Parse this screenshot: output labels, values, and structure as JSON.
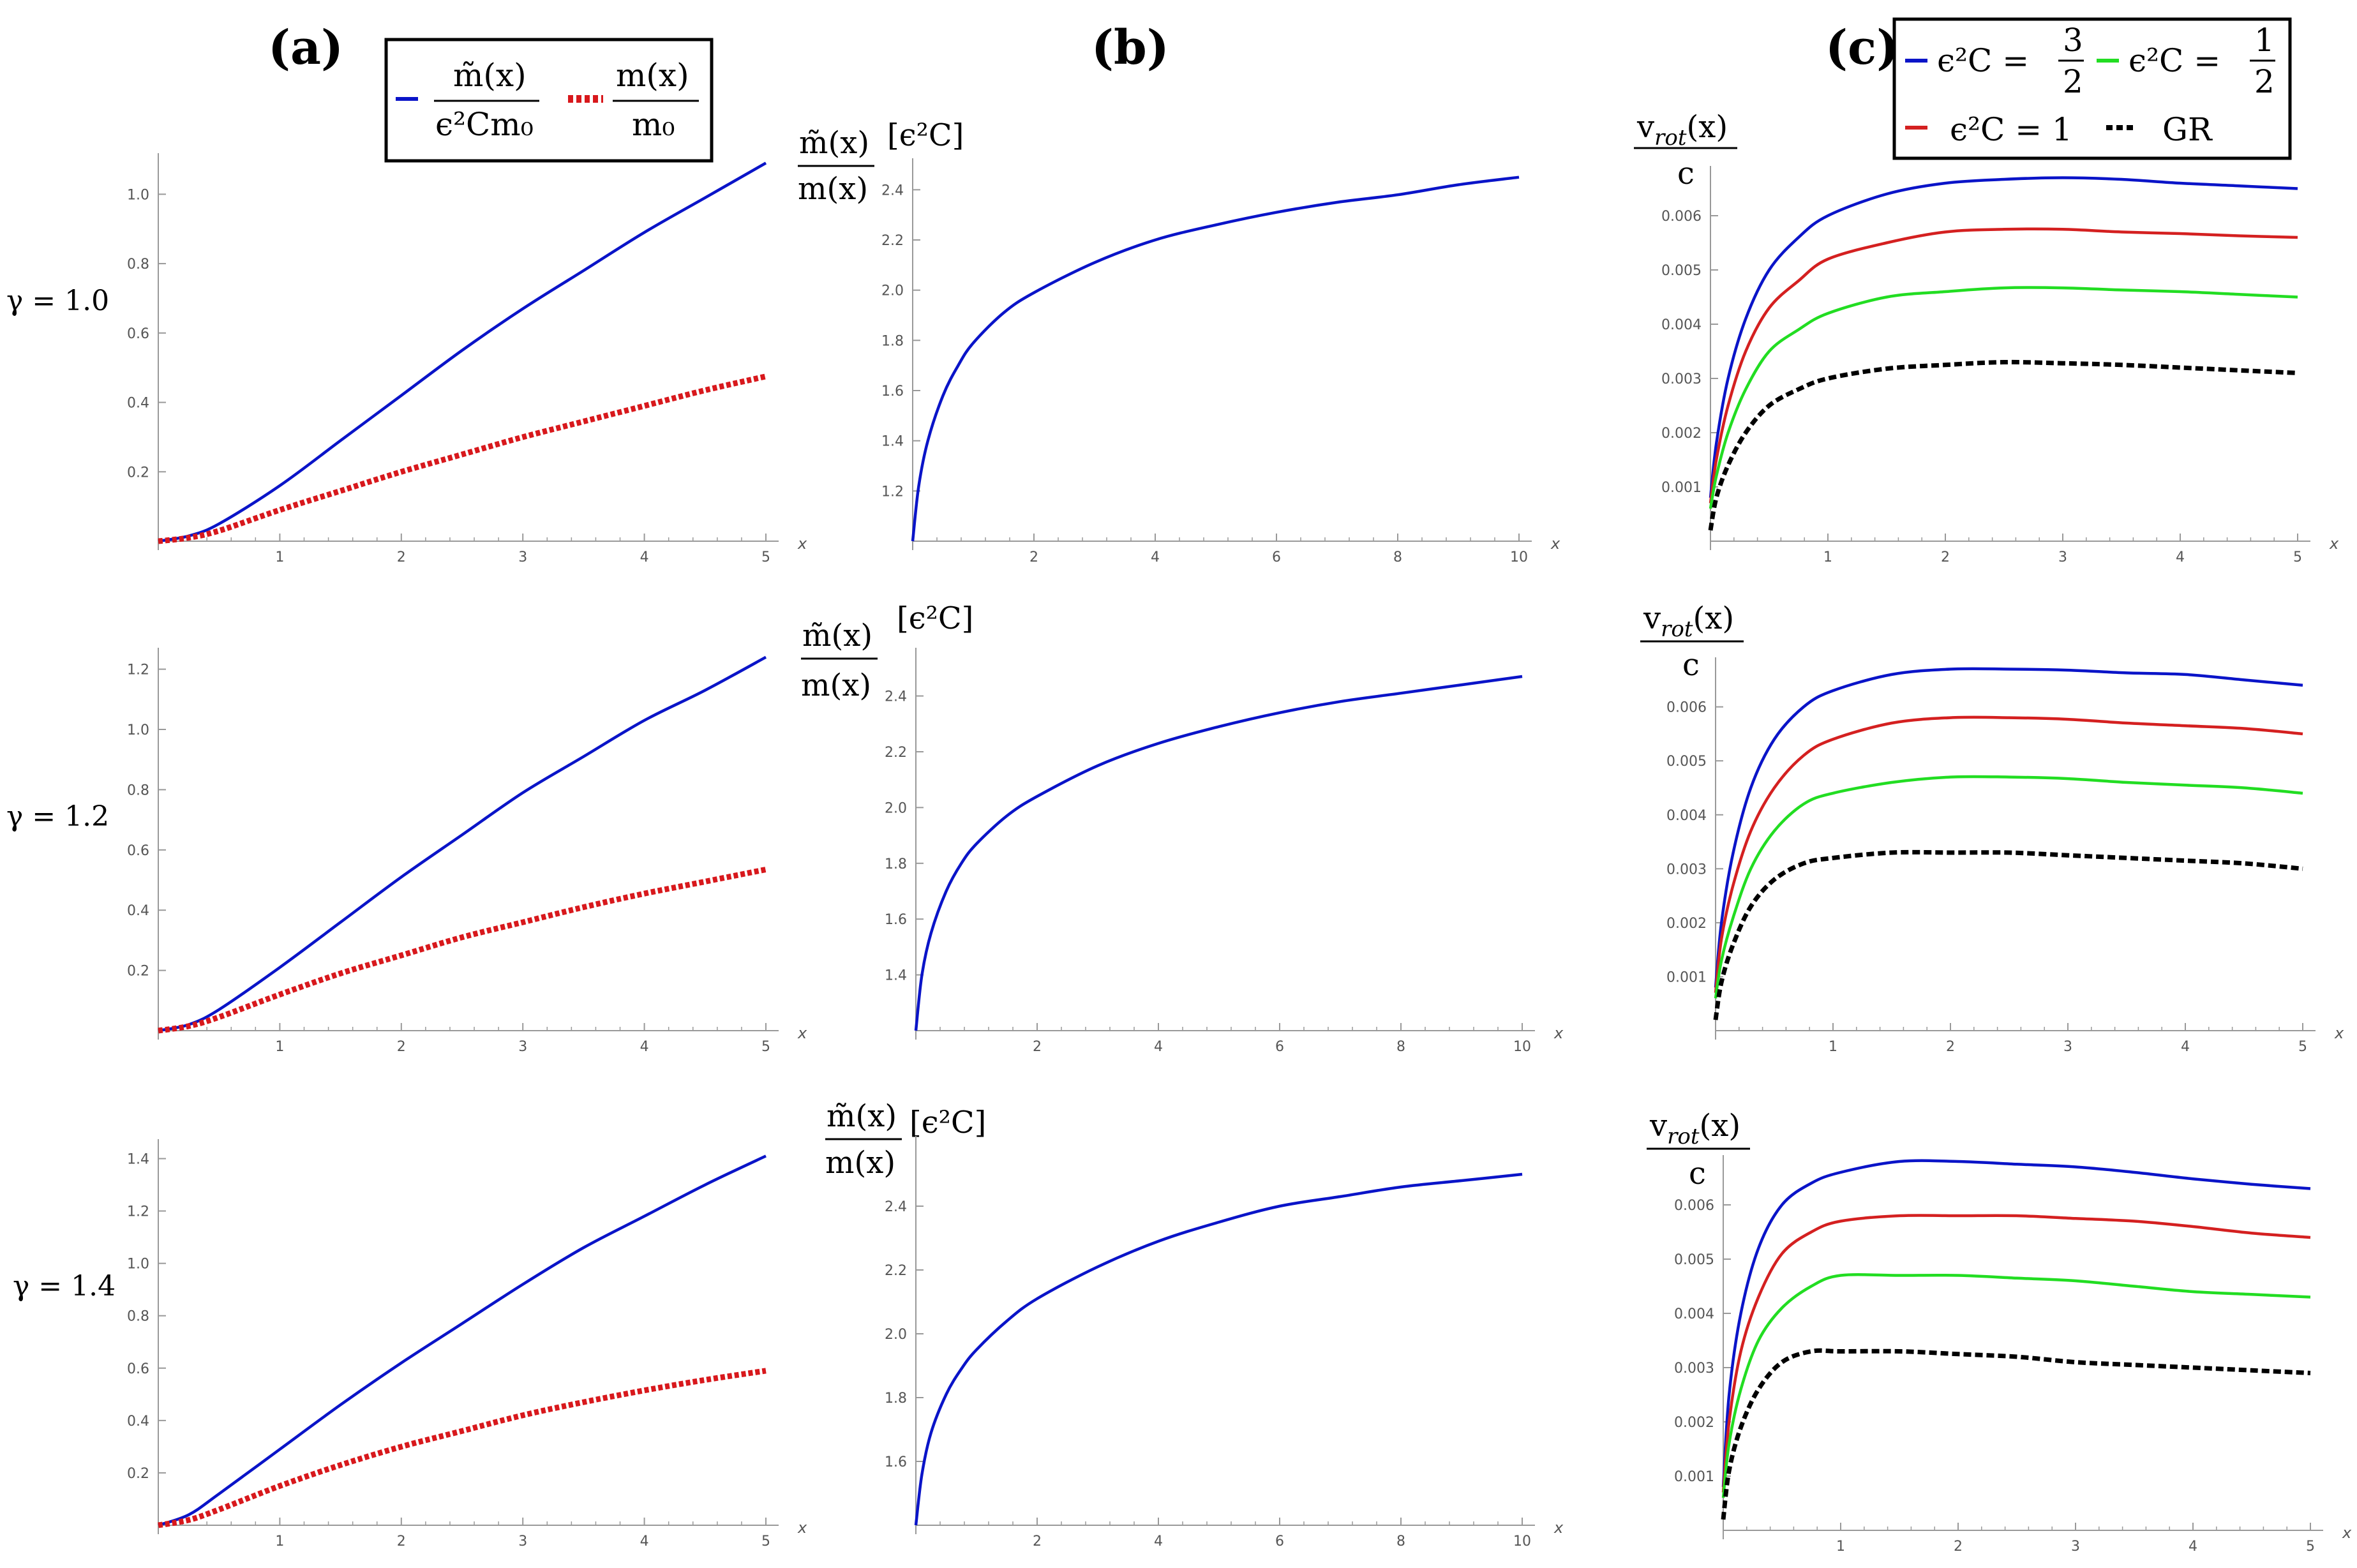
{
  "figure": {
    "panel_labels": [
      "(a)",
      "(b)",
      "(c)"
    ],
    "row_labels": [
      "γ = 1.0",
      "γ = 1.2",
      "γ = 1.4"
    ]
  },
  "colors": {
    "blue": "#0a14c8",
    "red_dotted": "#d8181c",
    "red": "#d42020",
    "green": "#22dd22",
    "black": "#000000",
    "axis": "#999999"
  },
  "legend_a": {
    "entries": [
      {
        "label_num": "m̃(x)",
        "label_den": "ϵ²Cm₀",
        "color": "#0a14c8",
        "style": "solid"
      },
      {
        "label_num": "m(x)",
        "label_den": "m₀",
        "color": "#d8181c",
        "style": "dotted"
      }
    ]
  },
  "legend_c": {
    "entries": [
      {
        "label": "ϵ²C =",
        "frac_num": "3",
        "frac_den": "2",
        "color": "#0a14c8",
        "style": "solid"
      },
      {
        "label": "ϵ²C =",
        "frac_num": "1",
        "frac_den": "2",
        "color": "#22dd22",
        "style": "solid"
      },
      {
        "label": "ϵ²C = 1",
        "color": "#d42020",
        "style": "solid"
      },
      {
        "label": "GR",
        "color": "#000000",
        "style": "dashed"
      }
    ]
  },
  "ylabel_b": {
    "num": "m̃(x)",
    "den": "m(x)",
    "unit": "[ϵ²C]"
  },
  "ylabel_c": {
    "num": "v_rot(x)",
    "num_main": "v",
    "num_sub": "rot",
    "num_arg": "(x)",
    "den": "c"
  },
  "chart_data": [
    {
      "id": "a1",
      "type": "line",
      "xlabel": "x",
      "xlim": [
        0,
        5
      ],
      "ylim": [
        0,
        1.1
      ],
      "xticks": [
        1,
        2,
        3,
        4,
        5
      ],
      "yticks": [
        0.2,
        0.4,
        0.6,
        0.8,
        1.0
      ],
      "x": [
        0,
        0.25,
        0.5,
        1,
        1.5,
        2,
        2.5,
        3,
        3.5,
        4,
        4.5,
        5
      ],
      "series": [
        {
          "name": "m̃(x)/(ϵ²Cm₀)",
          "color": "#0a14c8",
          "style": "solid",
          "values": [
            0,
            0.015,
            0.05,
            0.16,
            0.29,
            0.42,
            0.55,
            0.67,
            0.78,
            0.89,
            0.99,
            1.09
          ]
        },
        {
          "name": "m(x)/m₀",
          "color": "#d8181c",
          "style": "dotted",
          "values": [
            0,
            0.01,
            0.03,
            0.09,
            0.145,
            0.2,
            0.25,
            0.3,
            0.345,
            0.39,
            0.435,
            0.475
          ]
        }
      ]
    },
    {
      "id": "a2",
      "type": "line",
      "xlabel": "x",
      "xlim": [
        0,
        5
      ],
      "ylim": [
        0,
        1.25
      ],
      "xticks": [
        1,
        2,
        3,
        4,
        5
      ],
      "yticks": [
        0.2,
        0.4,
        0.6,
        0.8,
        1.0,
        1.2
      ],
      "x": [
        0,
        0.25,
        0.5,
        1,
        1.5,
        2,
        2.5,
        3,
        3.5,
        4,
        4.5,
        5
      ],
      "series": [
        {
          "name": "m̃(x)/(ϵ²Cm₀)",
          "color": "#0a14c8",
          "style": "solid",
          "values": [
            0,
            0.02,
            0.07,
            0.21,
            0.36,
            0.51,
            0.65,
            0.79,
            0.91,
            1.03,
            1.13,
            1.24
          ]
        },
        {
          "name": "m(x)/m₀",
          "color": "#d8181c",
          "style": "dotted",
          "values": [
            0,
            0.015,
            0.045,
            0.12,
            0.19,
            0.25,
            0.31,
            0.36,
            0.41,
            0.455,
            0.495,
            0.535
          ]
        }
      ]
    },
    {
      "id": "a3",
      "type": "line",
      "xlabel": "x",
      "xlim": [
        0,
        5
      ],
      "ylim": [
        0,
        1.45
      ],
      "xticks": [
        1,
        2,
        3,
        4,
        5
      ],
      "yticks": [
        0.2,
        0.4,
        0.6,
        0.8,
        1.0,
        1.2,
        1.4
      ],
      "x": [
        0,
        0.25,
        0.5,
        1,
        1.5,
        2,
        2.5,
        3,
        3.5,
        4,
        4.5,
        5
      ],
      "series": [
        {
          "name": "m̃(x)/(ϵ²Cm₀)",
          "color": "#0a14c8",
          "style": "solid",
          "values": [
            0,
            0.04,
            0.12,
            0.29,
            0.46,
            0.62,
            0.77,
            0.92,
            1.06,
            1.18,
            1.3,
            1.41
          ]
        },
        {
          "name": "m(x)/m₀",
          "color": "#d8181c",
          "style": "dotted",
          "values": [
            0,
            0.02,
            0.06,
            0.15,
            0.23,
            0.3,
            0.36,
            0.42,
            0.47,
            0.515,
            0.555,
            0.59
          ]
        }
      ]
    },
    {
      "id": "b1",
      "type": "line",
      "xlabel": "x",
      "xlim": [
        0,
        10
      ],
      "ylim": [
        1.0,
        2.5
      ],
      "xticks": [
        2,
        4,
        6,
        8,
        10
      ],
      "yticks": [
        1.2,
        1.4,
        1.6,
        1.8,
        2.0,
        2.2,
        2.4
      ],
      "x": [
        0,
        0.1,
        0.25,
        0.5,
        0.75,
        1,
        1.5,
        2,
        3,
        4,
        5,
        6,
        7,
        8,
        9,
        10
      ],
      "series": [
        {
          "name": "m̃(x)/m(x)",
          "color": "#0a14c8",
          "style": "solid",
          "values": [
            1.0,
            1.22,
            1.4,
            1.58,
            1.7,
            1.79,
            1.91,
            1.99,
            2.11,
            2.2,
            2.26,
            2.31,
            2.35,
            2.38,
            2.42,
            2.45
          ]
        }
      ]
    },
    {
      "id": "b2",
      "type": "line",
      "xlabel": "x",
      "xlim": [
        0,
        10
      ],
      "ylim": [
        1.2,
        2.55
      ],
      "xticks": [
        2,
        4,
        6,
        8,
        10
      ],
      "yticks": [
        1.4,
        1.6,
        1.8,
        2.0,
        2.2,
        2.4
      ],
      "x": [
        0,
        0.1,
        0.25,
        0.5,
        0.75,
        1,
        1.5,
        2,
        3,
        4,
        5,
        6,
        7,
        8,
        9,
        10
      ],
      "series": [
        {
          "name": "m̃(x)/m(x)",
          "color": "#0a14c8",
          "style": "solid",
          "values": [
            1.2,
            1.4,
            1.55,
            1.7,
            1.8,
            1.87,
            1.97,
            2.04,
            2.15,
            2.23,
            2.29,
            2.34,
            2.38,
            2.41,
            2.44,
            2.47
          ]
        }
      ]
    },
    {
      "id": "b3",
      "type": "line",
      "xlabel": "x",
      "xlim": [
        0,
        10
      ],
      "ylim": [
        1.4,
        2.6
      ],
      "xticks": [
        2,
        4,
        6,
        8,
        10
      ],
      "yticks": [
        1.6,
        1.8,
        2.0,
        2.2,
        2.4
      ],
      "x": [
        0,
        0.1,
        0.25,
        0.5,
        0.75,
        1,
        1.5,
        2,
        3,
        4,
        5,
        6,
        7,
        8,
        9,
        10
      ],
      "series": [
        {
          "name": "m̃(x)/m(x)",
          "color": "#0a14c8",
          "style": "solid",
          "values": [
            1.4,
            1.56,
            1.69,
            1.81,
            1.89,
            1.95,
            2.04,
            2.11,
            2.21,
            2.29,
            2.35,
            2.4,
            2.43,
            2.46,
            2.48,
            2.5
          ]
        }
      ]
    },
    {
      "id": "c1",
      "type": "line",
      "xlabel": "x",
      "xlim": [
        0,
        5
      ],
      "ylim": [
        0,
        0.0068
      ],
      "xticks": [
        1,
        2,
        3,
        4,
        5
      ],
      "yticks": [
        0.001,
        0.002,
        0.003,
        0.004,
        0.005,
        0.006
      ],
      "x": [
        0,
        0.05,
        0.15,
        0.3,
        0.5,
        0.75,
        1,
        1.5,
        2,
        2.5,
        3,
        3.5,
        4,
        4.5,
        5
      ],
      "series": [
        {
          "name": "ϵ²C = 3/2",
          "color": "#0a14c8",
          "style": "solid",
          "values": [
            0.0008,
            0.0018,
            0.003,
            0.0041,
            0.005,
            0.0056,
            0.006,
            0.0064,
            0.0066,
            0.00667,
            0.0067,
            0.00667,
            0.0066,
            0.00655,
            0.0065
          ]
        },
        {
          "name": "ϵ²C = 1",
          "color": "#d42020",
          "style": "solid",
          "values": [
            0.0007,
            0.0015,
            0.0025,
            0.0035,
            0.0043,
            0.0048,
            0.0052,
            0.0055,
            0.0057,
            0.00575,
            0.00575,
            0.0057,
            0.00567,
            0.00563,
            0.0056
          ]
        },
        {
          "name": "ϵ²C = 1/2",
          "color": "#22dd22",
          "style": "solid",
          "values": [
            0.0006,
            0.0012,
            0.002,
            0.0028,
            0.0035,
            0.0039,
            0.0042,
            0.0045,
            0.0046,
            0.00467,
            0.00467,
            0.00463,
            0.0046,
            0.00455,
            0.0045
          ]
        },
        {
          "name": "GR",
          "color": "#000000",
          "style": "dashed",
          "values": [
            0.0002,
            0.0008,
            0.0014,
            0.002,
            0.0025,
            0.0028,
            0.003,
            0.00318,
            0.00325,
            0.0033,
            0.00328,
            0.00325,
            0.0032,
            0.00315,
            0.0031
          ]
        }
      ]
    },
    {
      "id": "c2",
      "type": "line",
      "xlabel": "x",
      "xlim": [
        0,
        5
      ],
      "ylim": [
        0,
        0.0068
      ],
      "xticks": [
        1,
        2,
        3,
        4,
        5
      ],
      "yticks": [
        0.001,
        0.002,
        0.003,
        0.004,
        0.005,
        0.006
      ],
      "x": [
        0,
        0.05,
        0.15,
        0.3,
        0.5,
        0.75,
        1,
        1.5,
        2,
        2.5,
        3,
        3.5,
        4,
        4.5,
        5
      ],
      "series": [
        {
          "name": "ϵ²C = 3/2",
          "color": "#0a14c8",
          "style": "solid",
          "values": [
            0.0008,
            0.002,
            0.0033,
            0.0045,
            0.0054,
            0.006,
            0.0063,
            0.0066,
            0.0067,
            0.0067,
            0.00668,
            0.00663,
            0.0066,
            0.0065,
            0.0064
          ]
        },
        {
          "name": "ϵ²C = 1",
          "color": "#d42020",
          "style": "solid",
          "values": [
            0.0007,
            0.0017,
            0.0027,
            0.0037,
            0.0045,
            0.0051,
            0.0054,
            0.0057,
            0.0058,
            0.0058,
            0.00577,
            0.0057,
            0.00565,
            0.0056,
            0.0055
          ]
        },
        {
          "name": "ϵ²C = 1/2",
          "color": "#22dd22",
          "style": "solid",
          "values": [
            0.0006,
            0.0013,
            0.0021,
            0.003,
            0.0037,
            0.0042,
            0.0044,
            0.0046,
            0.0047,
            0.0047,
            0.00467,
            0.0046,
            0.00455,
            0.0045,
            0.0044
          ]
        },
        {
          "name": "GR",
          "color": "#000000",
          "style": "dashed",
          "values": [
            0.0002,
            0.0009,
            0.0016,
            0.0023,
            0.0028,
            0.0031,
            0.0032,
            0.0033,
            0.0033,
            0.0033,
            0.00325,
            0.0032,
            0.00315,
            0.0031,
            0.003
          ]
        }
      ]
    },
    {
      "id": "c3",
      "type": "line",
      "xlabel": "x",
      "xlim": [
        0,
        5
      ],
      "ylim": [
        0,
        0.0068
      ],
      "xticks": [
        1,
        2,
        3,
        4,
        5
      ],
      "yticks": [
        0.001,
        0.002,
        0.003,
        0.004,
        0.005,
        0.006
      ],
      "x": [
        0,
        0.05,
        0.15,
        0.3,
        0.5,
        0.75,
        1,
        1.5,
        2,
        2.5,
        3,
        3.5,
        4,
        4.5,
        5
      ],
      "series": [
        {
          "name": "ϵ²C = 3/2",
          "color": "#0a14c8",
          "style": "solid",
          "values": [
            0.0008,
            0.0025,
            0.004,
            0.0052,
            0.006,
            0.0064,
            0.0066,
            0.0068,
            0.0068,
            0.00675,
            0.0067,
            0.0066,
            0.00648,
            0.00638,
            0.0063
          ]
        },
        {
          "name": "ϵ²C = 1",
          "color": "#d42020",
          "style": "solid",
          "values": [
            0.0007,
            0.002,
            0.0033,
            0.0043,
            0.0051,
            0.0055,
            0.0057,
            0.0058,
            0.0058,
            0.0058,
            0.00575,
            0.0057,
            0.0056,
            0.00548,
            0.0054
          ]
        },
        {
          "name": "ϵ²C = 1/2",
          "color": "#22dd22",
          "style": "solid",
          "values": [
            0.0006,
            0.0016,
            0.0026,
            0.0035,
            0.0041,
            0.0045,
            0.0047,
            0.0047,
            0.0047,
            0.00465,
            0.0046,
            0.0045,
            0.0044,
            0.00435,
            0.0043
          ]
        },
        {
          "name": "GR",
          "color": "#000000",
          "style": "dashed",
          "values": [
            0.0002,
            0.0011,
            0.0019,
            0.0026,
            0.0031,
            0.0033,
            0.0033,
            0.0033,
            0.00325,
            0.0032,
            0.0031,
            0.00305,
            0.003,
            0.00295,
            0.0029
          ]
        }
      ]
    }
  ]
}
